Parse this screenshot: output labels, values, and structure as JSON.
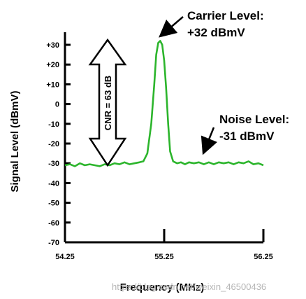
{
  "chart_data": {
    "type": "line",
    "xlabel": "Frequency (MHz)",
    "ylabel": "Signal Level (dBmV)",
    "xlim": [
      54.25,
      56.25
    ],
    "ylim": [
      -70,
      35
    ],
    "x_ticks": [
      "54.25",
      "55.25",
      "56.25"
    ],
    "y_ticks": [
      "+30",
      "+20",
      "+10",
      "0",
      "-10",
      "-20",
      "-30",
      "-40",
      "-50",
      "-60",
      "-70"
    ],
    "series_color": "#2cb52c",
    "series": [
      {
        "x": [
          54.25,
          54.3,
          54.35,
          54.4,
          54.45,
          54.5,
          54.55,
          54.6,
          54.65,
          54.7,
          54.75,
          54.8,
          54.85,
          54.9,
          54.95,
          55.0,
          55.04,
          55.08,
          55.12,
          55.15,
          55.17,
          55.19,
          55.21,
          55.23,
          55.25,
          55.27,
          55.29,
          55.31,
          55.34,
          55.38,
          55.42,
          55.46,
          55.5,
          55.55,
          55.6,
          55.65,
          55.7,
          55.75,
          55.8,
          55.85,
          55.9,
          55.95,
          56.0,
          56.05,
          56.1,
          56.15,
          56.2,
          56.25
        ],
        "y": [
          -31,
          -30.5,
          -31.5,
          -30,
          -31,
          -30.5,
          -31,
          -31.5,
          -30.5,
          -31,
          -30,
          -30.5,
          -29.5,
          -30.5,
          -30,
          -29.5,
          -29,
          -25,
          -10,
          10,
          25,
          31,
          32,
          30,
          22,
          8,
          -10,
          -24,
          -29,
          -30,
          -29.5,
          -30.5,
          -29.5,
          -30,
          -29.5,
          -30.5,
          -29.5,
          -30.5,
          -29.5,
          -30,
          -29.5,
          -30.5,
          -29.5,
          -30,
          -29,
          -30.5,
          -30,
          -31
        ]
      }
    ],
    "annotations": {
      "carrier_line1": "Carrier Level:",
      "carrier_line2": "+32 dBmV",
      "noise_line1": "Noise Level:",
      "noise_line2": "-31 dBmV",
      "cnr": "CNR = 63 dB"
    },
    "grid": false
  },
  "watermark": "https://blog.csdn.net/weixin_46500436"
}
